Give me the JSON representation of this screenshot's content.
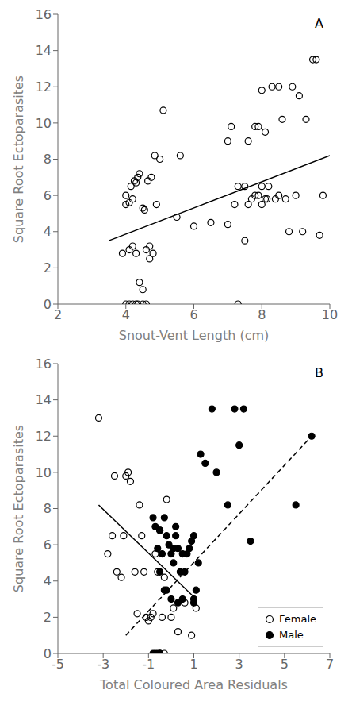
{
  "chart_data": [
    {
      "type": "scatter",
      "title": "A",
      "xlabel": "Snout-Vent Length (cm)",
      "ylabel": "Square Root Ectoparasites",
      "xlim": [
        2,
        10
      ],
      "ylim": [
        0,
        16
      ],
      "xticks": [
        2,
        4,
        6,
        8,
        10
      ],
      "yticks": [
        0,
        2,
        4,
        6,
        8,
        10,
        12,
        14,
        16
      ],
      "grid": false,
      "series": [
        {
          "type": "scatter",
          "marker": "open_circle",
          "color": "#000000",
          "x": [
            3.9,
            4.0,
            4.0,
            4.1,
            4.1,
            4.15,
            4.2,
            4.2,
            4.25,
            4.3,
            4.3,
            4.35,
            4.4,
            4.4,
            4.5,
            4.5,
            4.55,
            4.6,
            4.65,
            4.7,
            4.7,
            4.75,
            4.8,
            4.85,
            4.9,
            5.0,
            5.1,
            5.5,
            5.6,
            6.0,
            6.5,
            7.0,
            7.0,
            7.1,
            7.2,
            7.3,
            7.5,
            7.5,
            7.6,
            7.6,
            7.7,
            7.8,
            7.8,
            7.9,
            7.9,
            8.0,
            8.0,
            8.0,
            8.1,
            8.1,
            8.15,
            8.2,
            8.3,
            8.4,
            8.5,
            8.5,
            8.6,
            8.7,
            8.8,
            8.9,
            9.0,
            9.1,
            9.2,
            9.3,
            9.5,
            9.6,
            9.7,
            4.0,
            4.1,
            4.2,
            4.3,
            4.35,
            4.5,
            4.6,
            7.3,
            9.8
          ],
          "values": [
            2.8,
            5.5,
            6.0,
            3.0,
            5.6,
            6.5,
            3.2,
            5.8,
            6.8,
            2.8,
            6.7,
            7.0,
            1.2,
            7.2,
            0.8,
            5.3,
            5.2,
            3.0,
            6.8,
            2.5,
            3.2,
            7.0,
            2.8,
            8.2,
            5.5,
            8.0,
            10.7,
            4.8,
            8.2,
            4.3,
            4.5,
            4.4,
            9.0,
            9.8,
            5.5,
            6.5,
            3.5,
            6.5,
            5.5,
            9.0,
            5.8,
            6.0,
            9.8,
            6.0,
            9.8,
            5.5,
            6.5,
            11.8,
            5.8,
            9.5,
            5.8,
            6.5,
            12.0,
            5.8,
            6.0,
            12.0,
            10.2,
            5.8,
            4.0,
            12.0,
            6.0,
            11.5,
            4.0,
            10.2,
            13.5,
            13.5,
            3.8,
            0.0,
            0.0,
            0.0,
            0.0,
            0.0,
            0.0,
            0.0,
            0.0,
            6.0
          ]
        },
        {
          "type": "line",
          "line_style": "solid",
          "color": "#000000",
          "x": [
            3.5,
            10.0
          ],
          "values": [
            3.5,
            8.2
          ]
        }
      ]
    },
    {
      "type": "scatter",
      "title": "B",
      "xlabel": "Total Coloured Area Residuals",
      "ylabel": "Square Root Ectoparasites",
      "xlim": [
        -5,
        7
      ],
      "ylim": [
        0,
        16
      ],
      "xticks": [
        -5,
        -3,
        -1,
        1,
        3,
        5,
        7
      ],
      "yticks": [
        0,
        2,
        4,
        6,
        8,
        10,
        12,
        14,
        16
      ],
      "grid": false,
      "legend": "lower right",
      "series": [
        {
          "name": "Female",
          "type": "scatter",
          "marker": "open_circle",
          "color": "#000000",
          "x": [
            -3.2,
            -2.8,
            -2.6,
            -2.5,
            -2.4,
            -2.2,
            -2.1,
            -2.0,
            -1.9,
            -1.8,
            -1.6,
            -1.5,
            -1.4,
            -1.3,
            -1.2,
            -1.1,
            -1.0,
            -0.9,
            -0.8,
            -0.7,
            -0.6,
            -0.5,
            -0.4,
            -0.3,
            -0.2,
            0.0,
            0.1,
            0.3,
            0.6,
            0.9,
            1.1,
            -0.5,
            -0.3
          ],
          "values": [
            13.0,
            5.5,
            6.5,
            9.8,
            4.5,
            4.2,
            6.5,
            9.8,
            10.0,
            9.5,
            4.5,
            2.2,
            8.2,
            6.5,
            4.5,
            2.0,
            1.8,
            2.0,
            2.2,
            5.5,
            4.5,
            6.8,
            2.0,
            4.2,
            8.5,
            2.0,
            2.5,
            1.2,
            2.8,
            1.0,
            2.5,
            0.0,
            0.0
          ]
        },
        {
          "name": "Male",
          "type": "scatter",
          "marker": "circle",
          "color": "#000000",
          "x": [
            -0.8,
            -0.7,
            -0.6,
            -0.5,
            -0.5,
            -0.4,
            -0.3,
            -0.3,
            -0.2,
            -0.2,
            -0.1,
            0.0,
            0.0,
            0.1,
            0.1,
            0.2,
            0.2,
            0.3,
            0.3,
            0.4,
            0.5,
            0.5,
            0.6,
            0.7,
            0.8,
            0.9,
            1.0,
            1.0,
            1.1,
            1.2,
            1.3,
            1.5,
            1.8,
            2.0,
            2.5,
            2.8,
            3.0,
            3.2,
            3.5,
            5.5,
            6.2,
            -0.5,
            -0.5,
            -0.6,
            -0.7,
            -0.8,
            1.0
          ],
          "values": [
            7.5,
            7.0,
            5.8,
            6.8,
            4.5,
            5.5,
            7.5,
            3.5,
            6.5,
            3.5,
            6.0,
            5.5,
            3.0,
            5.8,
            5.0,
            7.0,
            6.5,
            5.8,
            2.8,
            4.5,
            5.5,
            3.0,
            4.5,
            5.5,
            5.8,
            6.2,
            3.0,
            6.5,
            3.5,
            5.0,
            11.0,
            10.5,
            13.5,
            10.0,
            8.2,
            13.5,
            11.5,
            13.5,
            6.2,
            8.2,
            12.0,
            0.0,
            0.0,
            0.0,
            0.0,
            0.0,
            2.8
          ]
        },
        {
          "type": "line",
          "line_style": "solid",
          "color": "#000000",
          "x": [
            -3.2,
            1.1
          ],
          "values": [
            8.2,
            3.0
          ]
        },
        {
          "type": "line",
          "line_style": "dashed",
          "color": "#000000",
          "x": [
            -2.0,
            6.2
          ],
          "values": [
            1.0,
            12.0
          ]
        }
      ]
    }
  ]
}
